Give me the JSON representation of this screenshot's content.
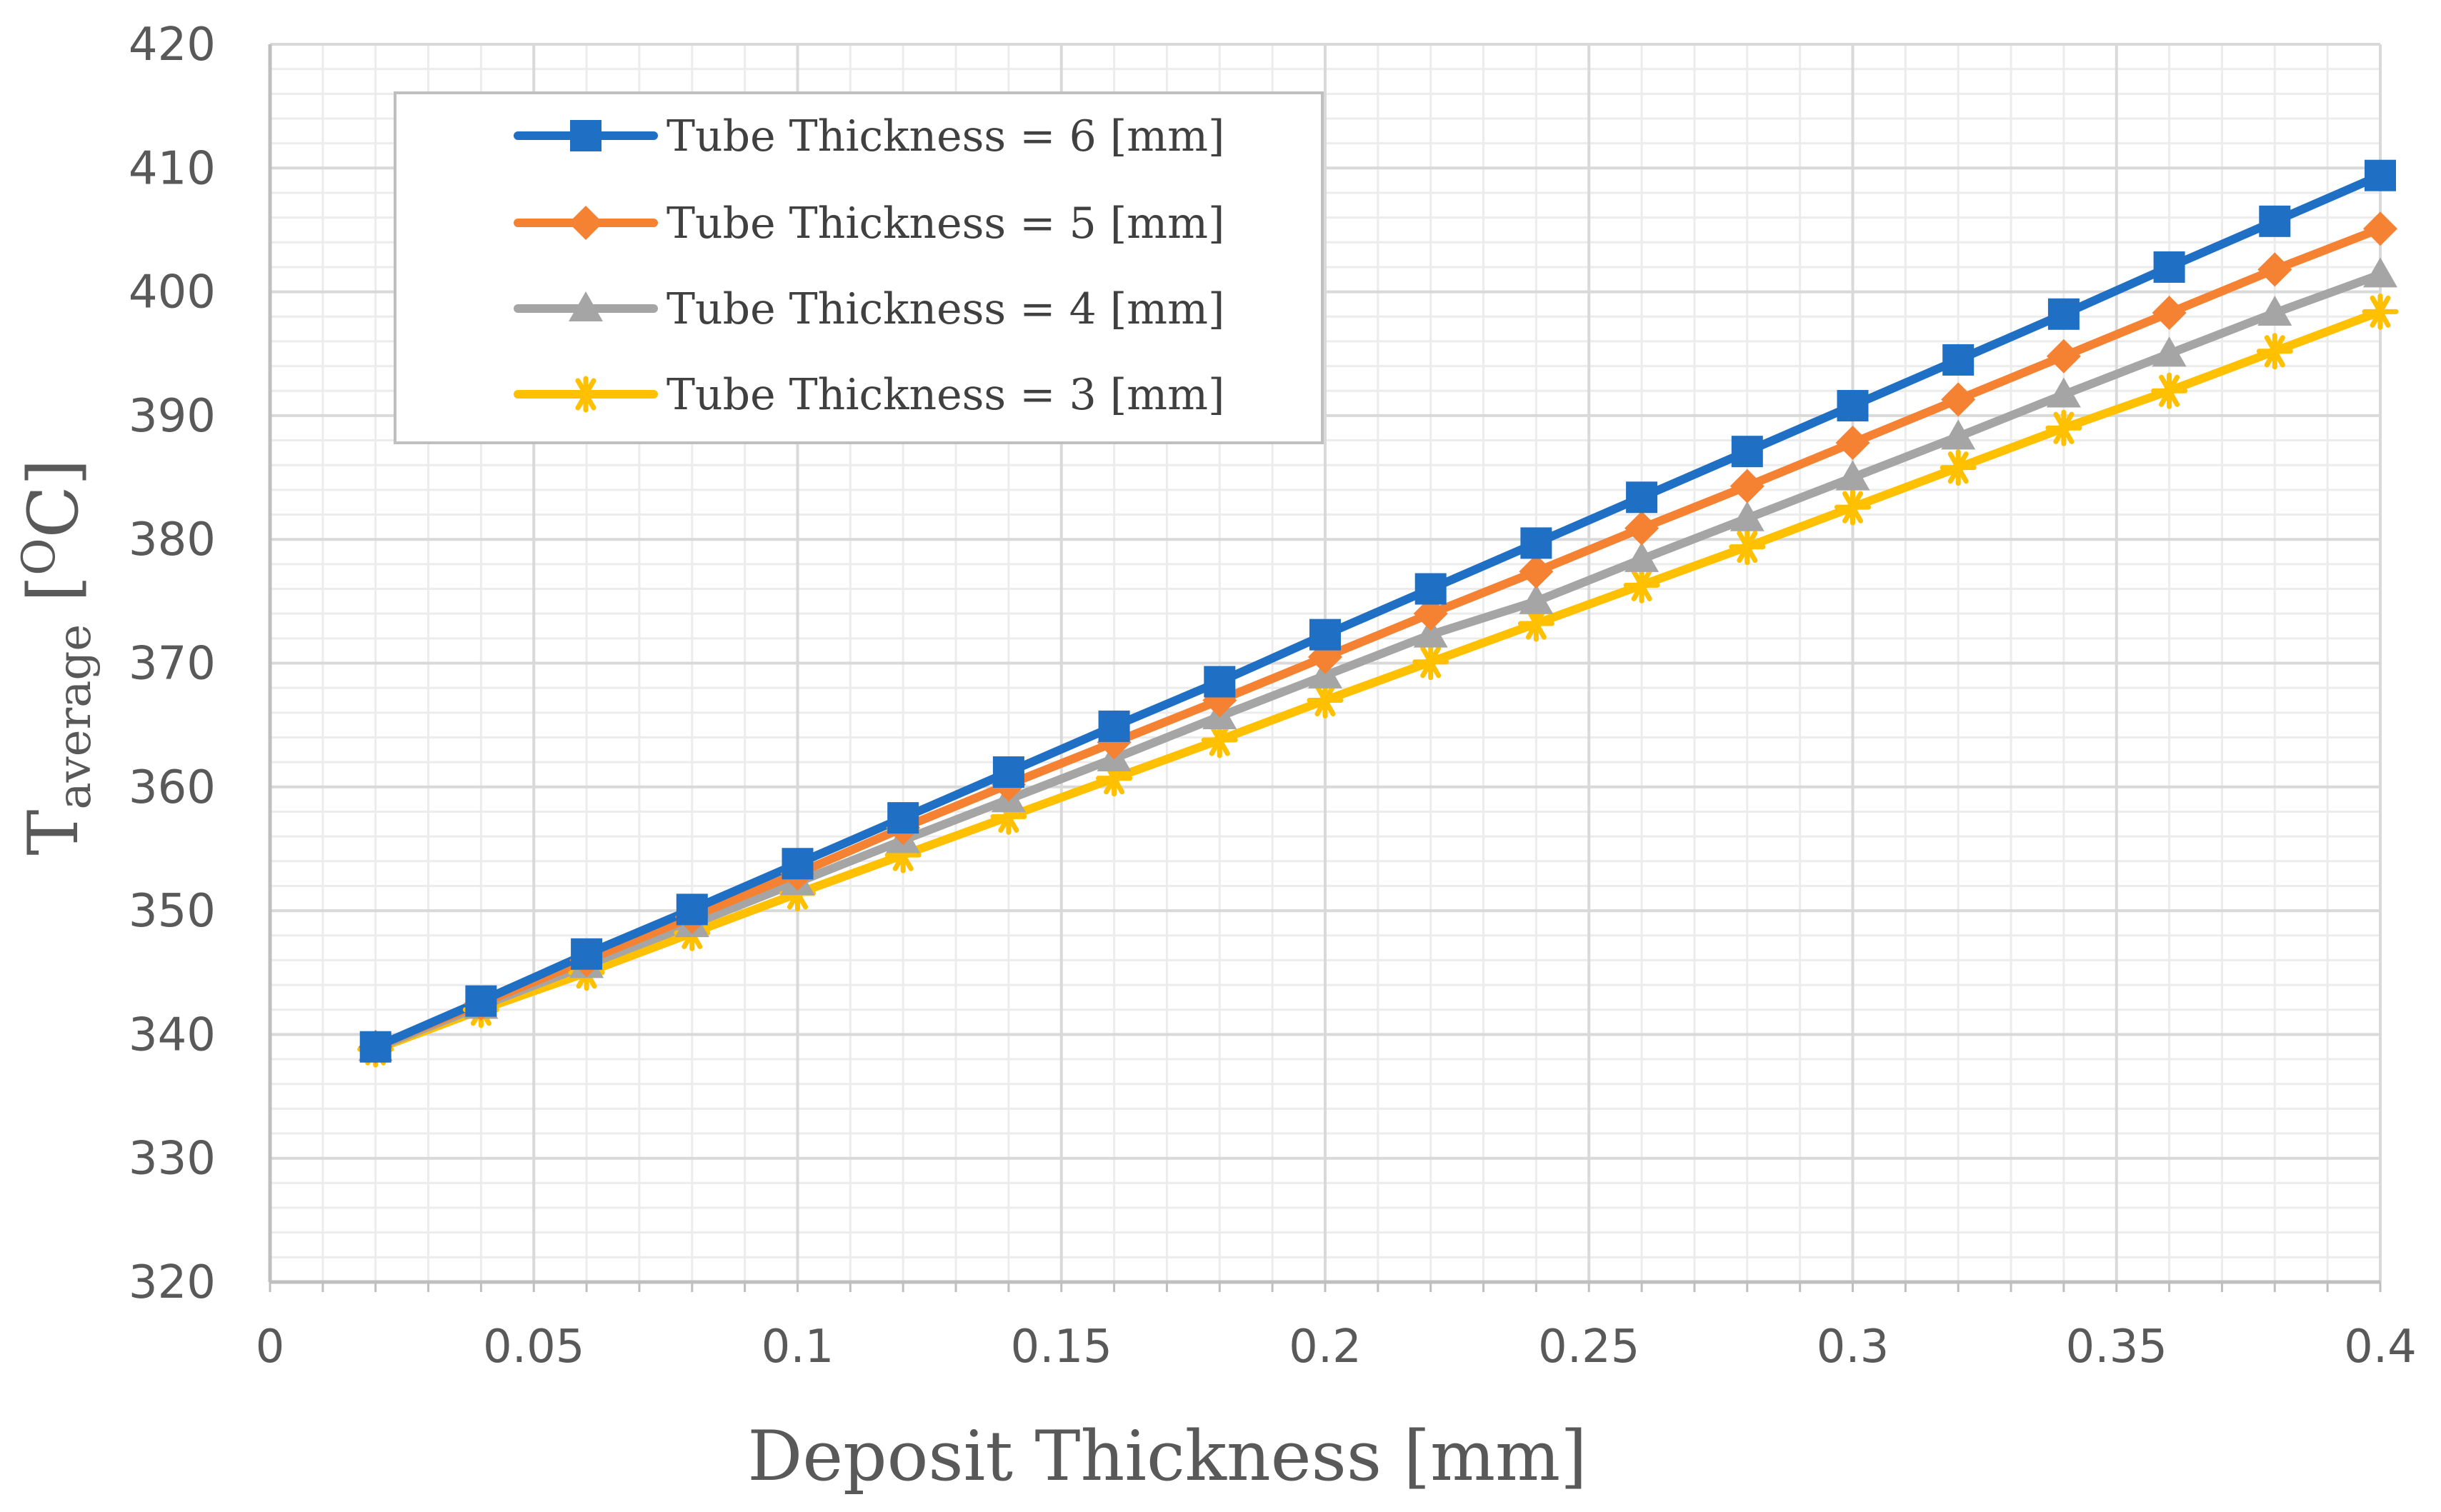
{
  "chart_data": {
    "type": "line",
    "title": "",
    "xlabel": "Deposit Thickness [mm]",
    "ylabel": {
      "main": "T",
      "subscript": "average",
      "unit_open": " [",
      "unit_super": "O",
      "unit_close": "C]"
    },
    "xlim": [
      0,
      0.4
    ],
    "ylim": [
      320,
      420
    ],
    "x_ticks": [
      0,
      0.05,
      0.1,
      0.15,
      0.2,
      0.25,
      0.3,
      0.35,
      0.4
    ],
    "x_tick_labels": [
      "0",
      "0.05",
      "0.1",
      "0.15",
      "0.2",
      "0.25",
      "0.3",
      "0.35",
      "0.4"
    ],
    "y_ticks": [
      320,
      330,
      340,
      350,
      360,
      370,
      380,
      390,
      400,
      410,
      420
    ],
    "y_tick_labels": [
      "320",
      "330",
      "340",
      "350",
      "360",
      "370",
      "380",
      "390",
      "400",
      "410",
      "420"
    ],
    "grid": true,
    "legend_position": "top-left",
    "x": [
      0.02,
      0.04,
      0.06,
      0.08,
      0.1,
      0.12,
      0.14,
      0.16,
      0.18,
      0.2,
      0.22,
      0.24,
      0.26,
      0.28,
      0.3,
      0.32,
      0.34,
      0.36,
      0.38,
      0.4
    ],
    "series": [
      {
        "name": "Tube Thickness = 6 [mm]",
        "color": "#1f6fc5",
        "marker": "square",
        "values": [
          339,
          342.7,
          346.5,
          350.1,
          353.8,
          357.5,
          361.2,
          364.9,
          368.5,
          372.3,
          376.0,
          379.7,
          383.4,
          387.1,
          390.8,
          394.5,
          398.2,
          402.0,
          405.7,
          409.4
        ]
      },
      {
        "name": "Tube Thickness = 5 [mm]",
        "color": "#f58232",
        "marker": "diamond",
        "values": [
          339,
          342.5,
          346.0,
          349.5,
          353.0,
          356.7,
          360.2,
          363.6,
          367.0,
          370.5,
          374.0,
          377.4,
          380.9,
          384.3,
          387.8,
          391.3,
          394.8,
          398.3,
          401.8,
          405.1
        ]
      },
      {
        "name": "Tube Thickness = 4 [mm]",
        "color": "#a5a5a5",
        "marker": "triangle",
        "values": [
          338.9,
          342.3,
          345.6,
          348.9,
          352.3,
          355.7,
          359.0,
          362.3,
          365.7,
          369.0,
          372.3,
          375.0,
          378.4,
          381.7,
          385.0,
          388.3,
          391.7,
          395.0,
          398.3,
          401.4
        ]
      },
      {
        "name": "Tube Thickness = 3 [mm]",
        "color": "#ffc000",
        "marker": "star",
        "values": [
          338.8,
          342.0,
          345.0,
          348.2,
          351.4,
          354.5,
          357.6,
          360.7,
          363.8,
          367.0,
          370.1,
          373.2,
          376.3,
          379.4,
          382.6,
          385.8,
          389.0,
          392.0,
          395.2,
          398.4
        ]
      }
    ]
  }
}
